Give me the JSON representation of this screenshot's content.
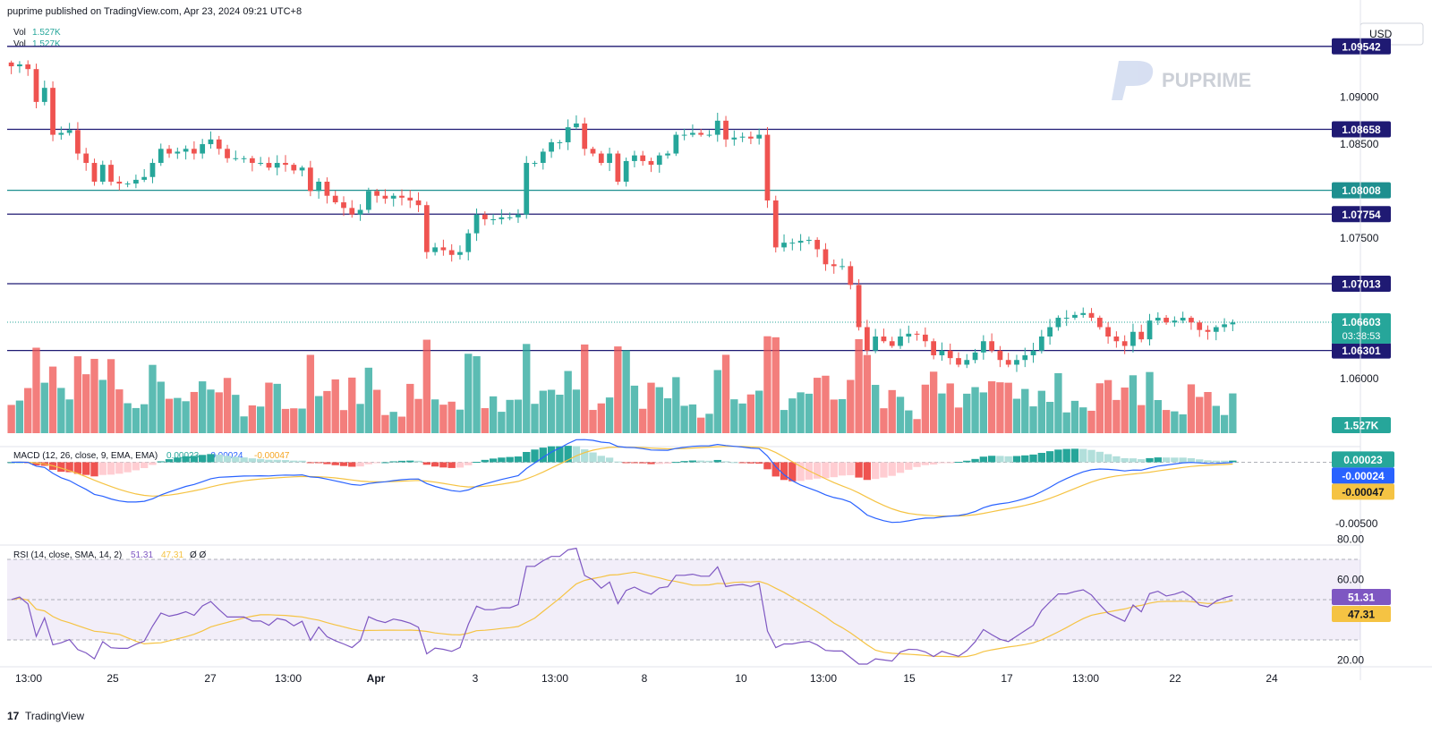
{
  "header": {
    "published": "puprime published on TradingView.com, Apr 23, 2024 09:21 UTC+8"
  },
  "currency": "USD",
  "logo": {
    "text": "PUPRIME"
  },
  "footer": {
    "brand": "TradingView"
  },
  "colors": {
    "up": "#26a69a",
    "down": "#ef5350",
    "level": "#1f1a73",
    "teal_level": "#1e8f8f",
    "macd": "#2962ff",
    "signal": "#f5c343",
    "rsi": "#7e57c2"
  },
  "chart_data": {
    "type": "candlestick",
    "price_axis": {
      "ticks": [
        "1.09000",
        "1.08500",
        "1.07500",
        "1.06000"
      ],
      "range": [
        1.0542,
        1.0975
      ]
    },
    "time_axis": {
      "ticks": [
        "13:00",
        "25",
        "27",
        "13:00",
        "Apr",
        "3",
        "13:00",
        "8",
        "10",
        "13:00",
        "15",
        "17",
        "13:00",
        "22",
        "24"
      ]
    },
    "volume_legend": [
      {
        "label": "Vol",
        "value": "1.527K"
      },
      {
        "label": "Vol",
        "value": "1.527K"
      }
    ],
    "horizontal_levels": [
      {
        "value": "1.09542",
        "kind": "level"
      },
      {
        "value": "1.08658",
        "kind": "level"
      },
      {
        "value": "1.08008",
        "kind": "teal"
      },
      {
        "value": "1.07754",
        "kind": "level"
      },
      {
        "value": "1.07013",
        "kind": "level"
      },
      {
        "value": "1.06301",
        "kind": "level"
      }
    ],
    "last_price": {
      "value": "1.06603",
      "countdown": "03:38:53"
    },
    "volume_last": "1.527K",
    "closes": [
      1.0933,
      1.0935,
      1.093,
      1.0895,
      1.091,
      1.086,
      1.0862,
      1.0865,
      1.084,
      1.083,
      1.081,
      1.0828,
      1.081,
      1.0808,
      1.0808,
      1.0812,
      1.0815,
      1.083,
      1.0845,
      1.084,
      1.0842,
      1.0845,
      1.084,
      1.085,
      1.0855,
      1.0845,
      1.0835,
      1.0835,
      1.0835,
      1.083,
      1.083,
      1.0825,
      1.083,
      1.0828,
      1.0822,
      1.0825,
      1.08,
      1.081,
      1.0795,
      1.0788,
      1.0782,
      1.0775,
      1.078,
      1.08,
      1.0795,
      1.0792,
      1.0795,
      1.0793,
      1.079,
      1.0785,
      1.0735,
      1.074,
      1.0737,
      1.0732,
      1.0735,
      1.0755,
      1.0775,
      1.077,
      1.077,
      1.0772,
      1.0772,
      1.0775,
      1.083,
      1.083,
      1.0842,
      1.0852,
      1.0852,
      1.0868,
      1.0872,
      1.0845,
      1.084,
      1.083,
      1.084,
      1.081,
      1.0832,
      1.0838,
      1.0832,
      1.0828,
      1.0838,
      1.084,
      1.086,
      1.086,
      1.0862,
      1.086,
      1.086,
      1.0875,
      1.0855,
      1.0857,
      1.0858,
      1.0856,
      1.086,
      1.079,
      1.074,
      1.0745,
      1.0745,
      1.0747,
      1.0748,
      1.0738,
      1.0722,
      1.072,
      1.072,
      1.07,
      1.0655,
      1.063,
      1.0645,
      1.064,
      1.0635,
      1.0645,
      1.0648,
      1.0647,
      1.064,
      1.0625,
      1.063,
      1.0622,
      1.0615,
      1.062,
      1.0628,
      1.064,
      1.063,
      1.062,
      1.0615,
      1.062,
      1.0625,
      1.063,
      1.0645,
      1.0655,
      1.0665,
      1.0665,
      1.0668,
      1.067,
      1.0665,
      1.0655,
      1.0645,
      1.064,
      1.0635,
      1.065,
      1.0642,
      1.0662,
      1.0665,
      1.066,
      1.0662,
      1.0665,
      1.066,
      1.0652,
      1.065,
      1.0655,
      1.0658,
      1.066
    ],
    "volume_max": 1.7,
    "macd": {
      "title": "MACD (12, 26, close, 9, EMA, EMA)",
      "hist": "0.00023",
      "macd": "-0.00024",
      "signal": "-0.00047",
      "axis_label": "-0.00500",
      "range": [
        -0.0055,
        0.0012
      ]
    },
    "rsi": {
      "title": "RSI (14, close, SMA, 14, 2)",
      "value": "51.31",
      "sma": "47.31",
      "extra": "Ø Ø",
      "ticks": [
        "80.00",
        "60.00",
        "20.00"
      ],
      "range": [
        18,
        82
      ],
      "band": [
        70,
        30
      ],
      "mid": 50
    }
  }
}
